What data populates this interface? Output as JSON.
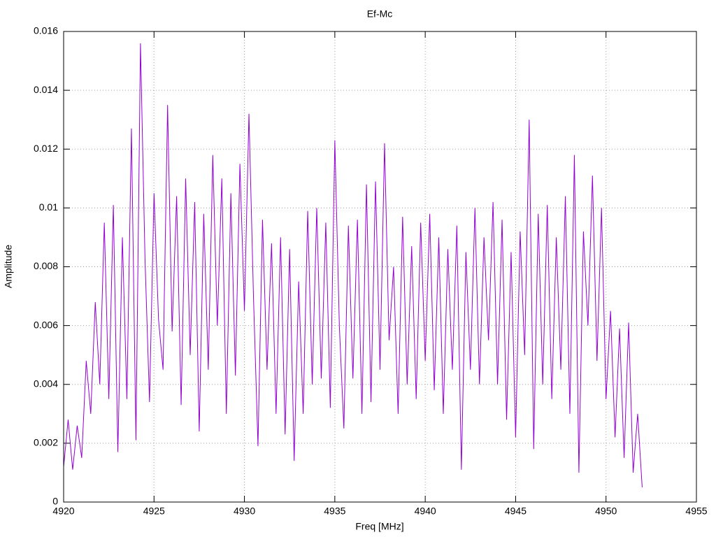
{
  "chart_data": {
    "type": "line",
    "title": "Ef-Mc",
    "x_label": "Freq [MHz]",
    "y_label": "Amplitude",
    "x": [
      4920,
      4920.25,
      4920.5,
      4920.75,
      4921,
      4921.25,
      4921.5,
      4921.75,
      4922,
      4922.25,
      4922.5,
      4922.75,
      4923,
      4923.25,
      4923.5,
      4923.75,
      4924,
      4924.25,
      4924.5,
      4924.75,
      4925,
      4925.25,
      4925.5,
      4925.75,
      4926,
      4926.25,
      4926.5,
      4926.75,
      4927,
      4927.25,
      4927.5,
      4927.75,
      4928,
      4928.25,
      4928.5,
      4928.75,
      4929,
      4929.25,
      4929.5,
      4929.75,
      4930,
      4930.25,
      4930.5,
      4930.75,
      4931,
      4931.25,
      4931.5,
      4931.75,
      4932,
      4932.25,
      4932.5,
      4932.75,
      4933,
      4933.25,
      4933.5,
      4933.75,
      4934,
      4934.25,
      4934.5,
      4934.75,
      4935,
      4935.25,
      4935.5,
      4935.75,
      4936,
      4936.25,
      4936.5,
      4936.75,
      4937,
      4937.25,
      4937.5,
      4937.75,
      4938,
      4938.25,
      4938.5,
      4938.75,
      4939,
      4939.25,
      4939.5,
      4939.75,
      4940,
      4940.25,
      4940.5,
      4940.75,
      4941,
      4941.25,
      4941.5,
      4941.75,
      4942,
      4942.25,
      4942.5,
      4942.75,
      4943,
      4943.25,
      4943.5,
      4943.75,
      4944,
      4944.25,
      4944.5,
      4944.75,
      4945,
      4945.25,
      4945.5,
      4945.75,
      4946,
      4946.25,
      4946.5,
      4946.75,
      4947,
      4947.25,
      4947.5,
      4947.75,
      4948,
      4948.25,
      4948.5,
      4948.75,
      4949,
      4949.25,
      4949.5,
      4949.75,
      4950,
      4950.25,
      4950.5,
      4950.75,
      4951,
      4951.25,
      4951.5,
      4951.75,
      4952
    ],
    "series": [
      {
        "name": "Ef-Mc",
        "color": "#9400d3",
        "values": [
          0.0012,
          0.0028,
          0.0011,
          0.0026,
          0.0015,
          0.0048,
          0.003,
          0.0068,
          0.004,
          0.0095,
          0.0035,
          0.0101,
          0.0017,
          0.009,
          0.0035,
          0.0127,
          0.0021,
          0.0156,
          0.0083,
          0.0034,
          0.0105,
          0.0062,
          0.0045,
          0.0135,
          0.0058,
          0.0104,
          0.0033,
          0.011,
          0.005,
          0.0102,
          0.0024,
          0.0098,
          0.0045,
          0.0118,
          0.006,
          0.011,
          0.003,
          0.0105,
          0.0043,
          0.0115,
          0.0065,
          0.0132,
          0.007,
          0.0019,
          0.0096,
          0.0045,
          0.0088,
          0.003,
          0.009,
          0.0023,
          0.0086,
          0.0014,
          0.0075,
          0.003,
          0.0099,
          0.004,
          0.01,
          0.0042,
          0.0095,
          0.0032,
          0.0123,
          0.006,
          0.0025,
          0.0094,
          0.0042,
          0.0096,
          0.003,
          0.0108,
          0.0034,
          0.0109,
          0.0045,
          0.0122,
          0.0055,
          0.008,
          0.003,
          0.0097,
          0.004,
          0.0087,
          0.0035,
          0.0095,
          0.0048,
          0.0098,
          0.0038,
          0.009,
          0.003,
          0.0086,
          0.0045,
          0.0094,
          0.0011,
          0.0085,
          0.0045,
          0.01,
          0.004,
          0.009,
          0.0055,
          0.0102,
          0.004,
          0.0096,
          0.0028,
          0.0085,
          0.0022,
          0.0092,
          0.005,
          0.013,
          0.0018,
          0.0098,
          0.004,
          0.0101,
          0.0035,
          0.009,
          0.0045,
          0.0104,
          0.003,
          0.0118,
          0.001,
          0.0092,
          0.006,
          0.0111,
          0.0048,
          0.01,
          0.0035,
          0.0065,
          0.0022,
          0.0059,
          0.0015,
          0.0061,
          0.001,
          0.003,
          0.0005
        ]
      }
    ],
    "xlim": [
      4920,
      4955
    ],
    "xticks": [
      4920,
      4925,
      4930,
      4935,
      4940,
      4945,
      4950,
      4955
    ],
    "ylim": [
      0,
      0.016
    ],
    "yticks": [
      0,
      0.002,
      0.004,
      0.006,
      0.008,
      0.01,
      0.012,
      0.014,
      0.016
    ],
    "grid": true
  }
}
